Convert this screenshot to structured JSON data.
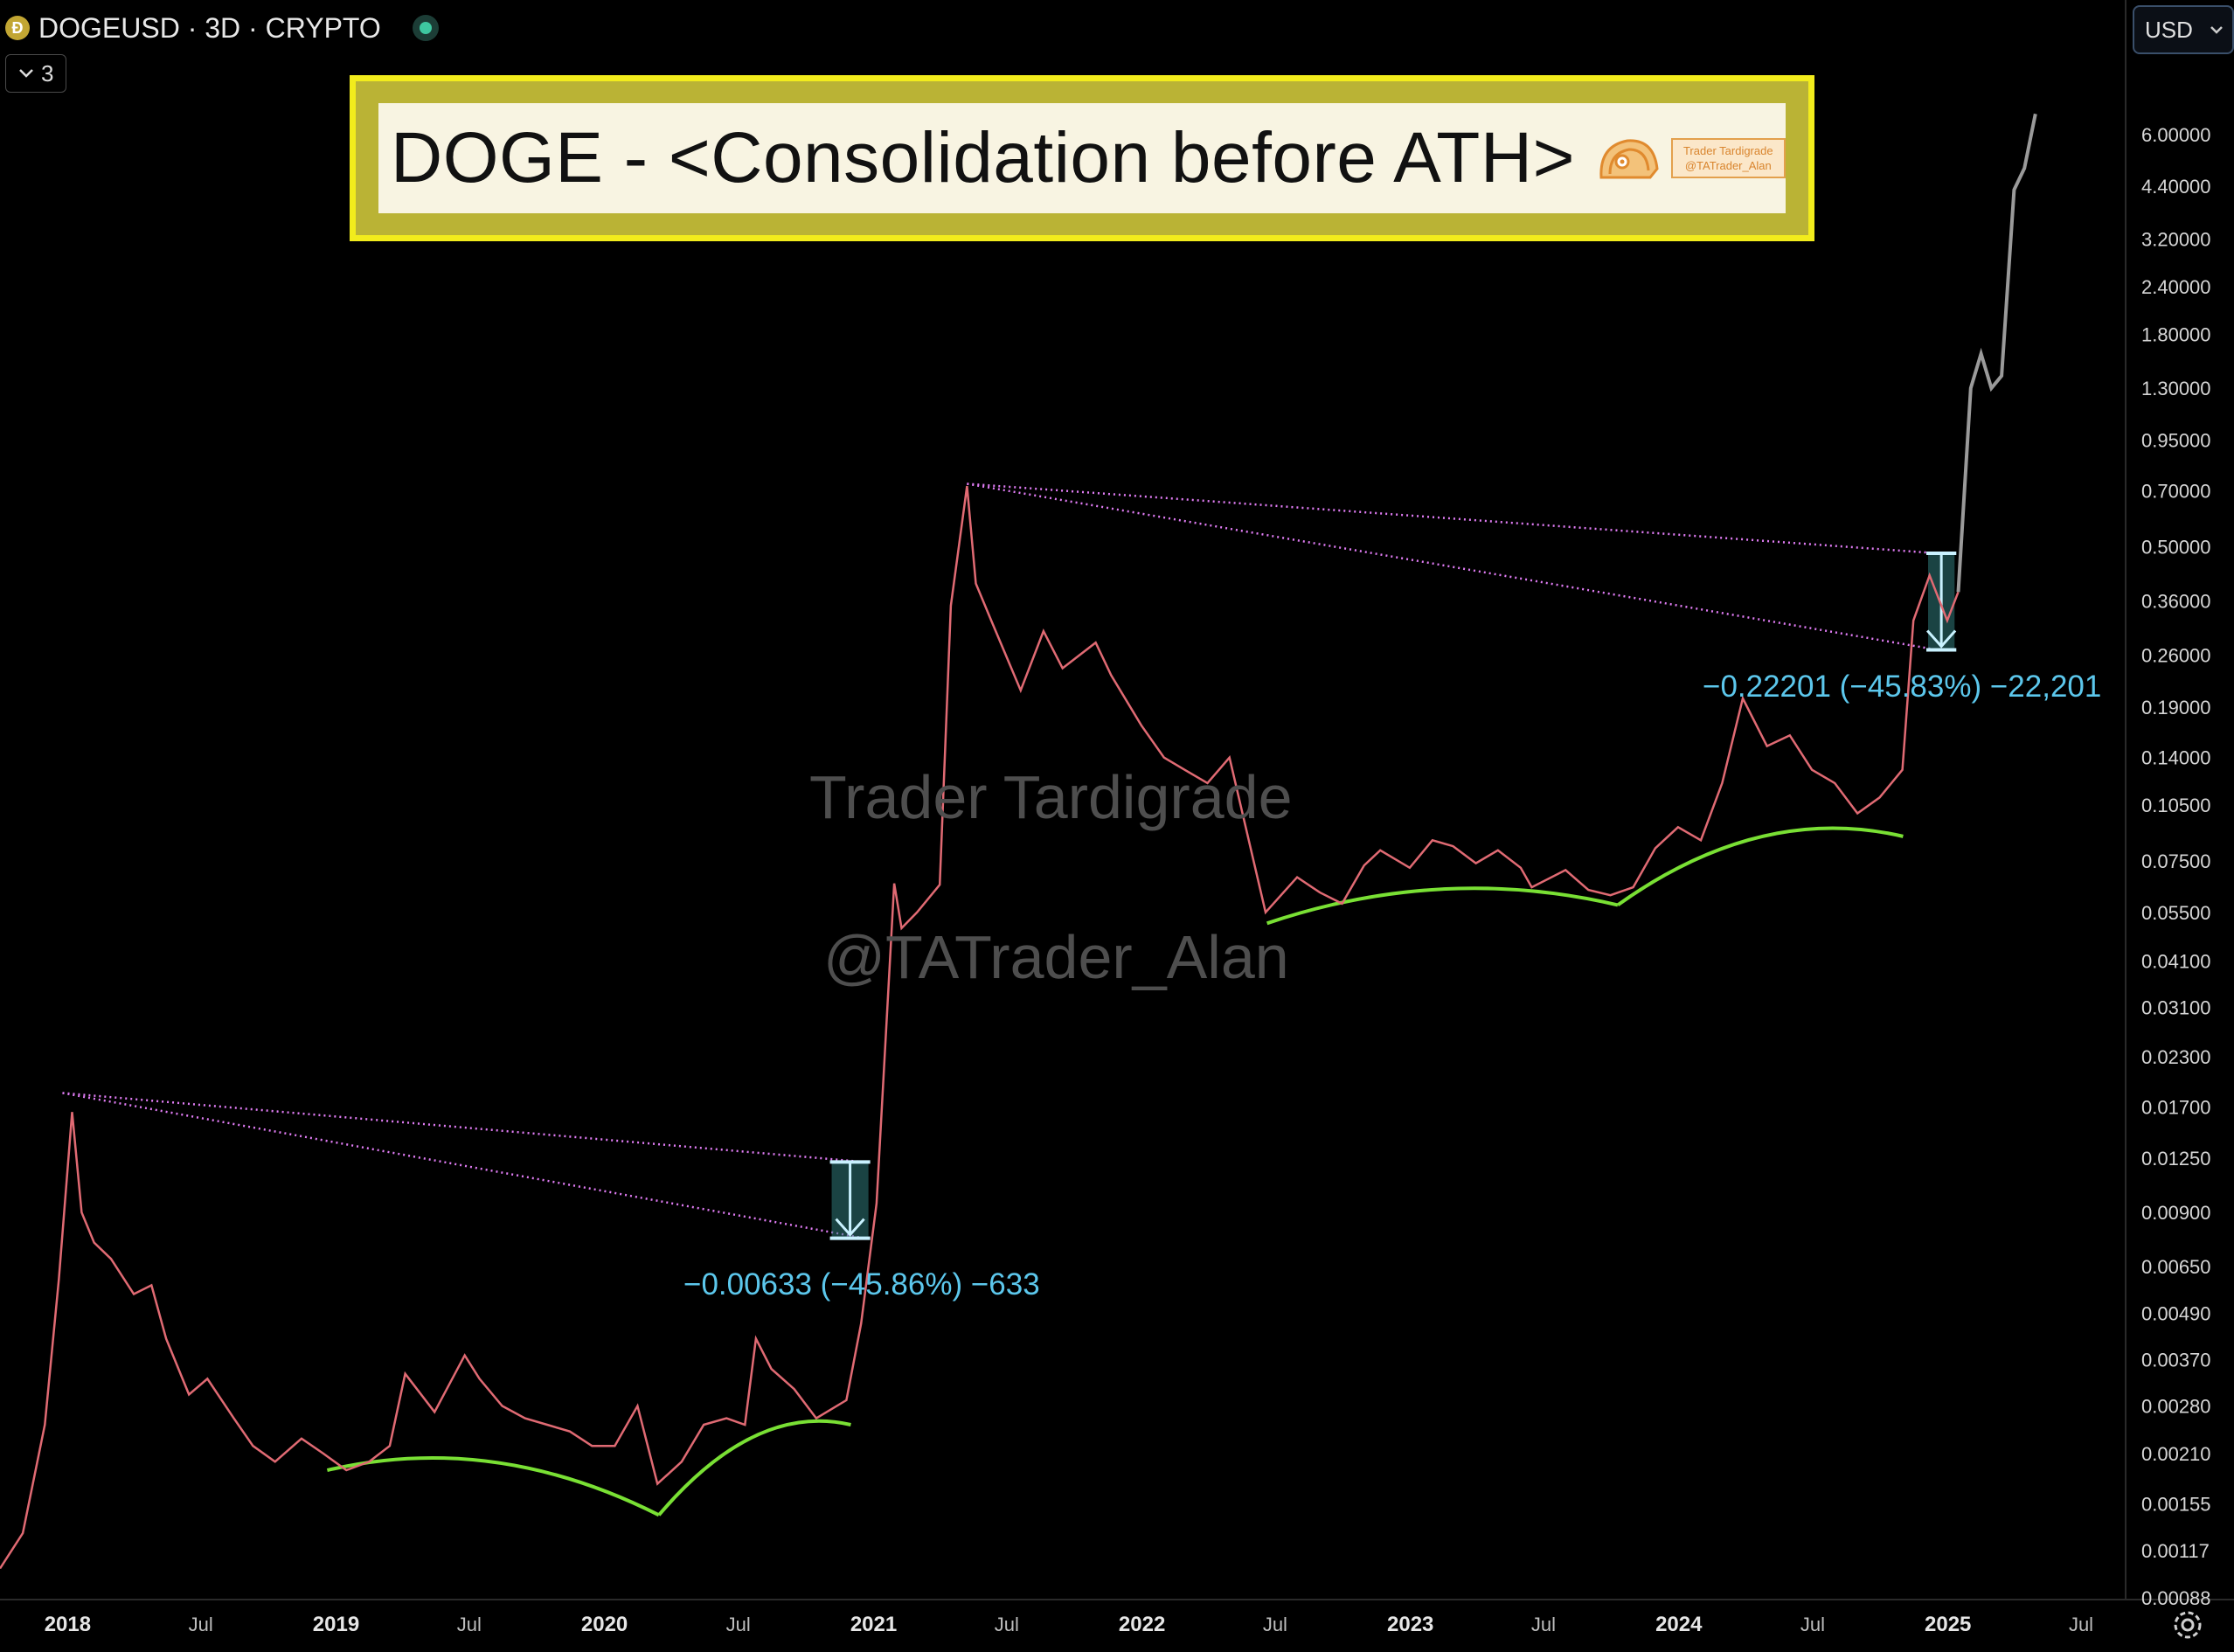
{
  "header": {
    "coin_icon": "dogecoin-coin-icon",
    "symbol": "DOGEUSD · 3D · CRYPTO",
    "status_icon": "market-open-dot-icon",
    "indicator_toggle": "3",
    "currency": "USD"
  },
  "title_banner": {
    "text": "DOGE - <Consolidation before ATH>",
    "logo_line1": "Trader Tardigrade",
    "logo_line2": "@TATrader_Alan",
    "colors": {
      "outer": "#f2ec1c",
      "inner": "#bab335",
      "panel": "#f8f4e2"
    }
  },
  "watermark": {
    "line1": "Trader Tardigrade",
    "line2": "@TATrader_Alan"
  },
  "measurements": [
    {
      "text": "−0.00633 (−45.86%) −633"
    },
    {
      "text": "−0.22201 (−45.83%) −22,201"
    }
  ],
  "chart_data": {
    "type": "line",
    "y_scale": "log",
    "ylim": [
      0.00088,
      8.5
    ],
    "x_axis_ticks": [
      "2018",
      "Jul",
      "2019",
      "Jul",
      "2020",
      "Jul",
      "2021",
      "Jul",
      "2022",
      "Jul",
      "2023",
      "Jul",
      "2024",
      "Jul",
      "2025",
      "Jul"
    ],
    "y_axis_ticks": [
      "6.00000",
      "4.40000",
      "3.20000",
      "2.40000",
      "1.80000",
      "1.30000",
      "0.95000",
      "0.70000",
      "0.50000",
      "0.36000",
      "0.26000",
      "0.19000",
      "0.14000",
      "0.10500",
      "0.07500",
      "0.05500",
      "0.04100",
      "0.03100",
      "0.02300",
      "0.01700",
      "0.01250",
      "0.00900",
      "0.00650",
      "0.00490",
      "0.00370",
      "0.00280",
      "0.00210",
      "0.00155",
      "0.00117",
      "0.00088"
    ],
    "series": [
      {
        "x": [
          "2017-10-01",
          "2017-11-01",
          "2017-12-01",
          "2017-12-20",
          "2018-01-07",
          "2018-01-20",
          "2018-02-06",
          "2018-03-01",
          "2018-04-01",
          "2018-04-25",
          "2018-05-15",
          "2018-06-15",
          "2018-07-10",
          "2018-08-15",
          "2018-09-10",
          "2018-10-10",
          "2018-11-15",
          "2018-12-15",
          "2019-01-15",
          "2019-02-15",
          "2019-03-15",
          "2019-04-05",
          "2019-05-15",
          "2019-06-25",
          "2019-07-15",
          "2019-08-15",
          "2019-09-15",
          "2019-10-15",
          "2019-11-15",
          "2019-12-15",
          "2020-01-15",
          "2020-02-15",
          "2020-03-13",
          "2020-04-15",
          "2020-05-15",
          "2020-06-15",
          "2020-07-10",
          "2020-07-25",
          "2020-08-15",
          "2020-09-15",
          "2020-10-15",
          "2020-11-25",
          "2020-12-15",
          "2021-01-05",
          "2021-01-29",
          "2021-02-08",
          "2021-03-01",
          "2021-04-01",
          "2021-04-16",
          "2021-05-08",
          "2021-05-20",
          "2021-06-10",
          "2021-07-20",
          "2021-08-20",
          "2021-09-15",
          "2021-10-30",
          "2021-11-20",
          "2021-12-31",
          "2022-01-31",
          "2022-02-28",
          "2022-03-31",
          "2022-04-30",
          "2022-06-18",
          "2022-07-31",
          "2022-08-31",
          "2022-09-30",
          "2022-10-30",
          "2022-11-21",
          "2022-12-31",
          "2023-01-31",
          "2023-02-28",
          "2023-03-31",
          "2023-04-30",
          "2023-05-31",
          "2023-06-15",
          "2023-07-31",
          "2023-08-31",
          "2023-09-30",
          "2023-10-31",
          "2023-11-30",
          "2023-12-31",
          "2024-01-31",
          "2024-02-29",
          "2024-03-28",
          "2024-04-30",
          "2024-05-31",
          "2024-06-30",
          "2024-07-31",
          "2024-08-31",
          "2024-09-30",
          "2024-10-31",
          "2024-11-15",
          "2024-12-07",
          "2024-12-31",
          "2025-01-15",
          "2025-02-01",
          "2025-02-15",
          "2025-03-01",
          "2025-03-15",
          "2025-04-01",
          "2025-04-15",
          "2025-04-30"
        ],
        "values": [
          0.00105,
          0.0013,
          0.0025,
          0.006,
          0.0165,
          0.009,
          0.0075,
          0.0068,
          0.0055,
          0.0058,
          0.0042,
          0.003,
          0.0033,
          0.0026,
          0.0022,
          0.002,
          0.0023,
          0.0021,
          0.0019,
          0.002,
          0.0022,
          0.0034,
          0.0027,
          0.0038,
          0.0033,
          0.0028,
          0.0026,
          0.0025,
          0.0024,
          0.0022,
          0.0022,
          0.0028,
          0.00175,
          0.002,
          0.0025,
          0.0026,
          0.0025,
          0.0042,
          0.0035,
          0.0031,
          0.0026,
          0.0029,
          0.0046,
          0.0095,
          0.0655,
          0.05,
          0.055,
          0.065,
          0.35,
          0.72,
          0.4,
          0.32,
          0.21,
          0.3,
          0.24,
          0.28,
          0.23,
          0.17,
          0.14,
          0.13,
          0.12,
          0.14,
          0.055,
          0.068,
          0.062,
          0.058,
          0.073,
          0.08,
          0.072,
          0.085,
          0.082,
          0.074,
          0.08,
          0.072,
          0.064,
          0.071,
          0.063,
          0.061,
          0.064,
          0.081,
          0.092,
          0.085,
          0.12,
          0.2,
          0.15,
          0.16,
          0.13,
          0.12,
          0.1,
          0.11,
          0.13,
          0.32,
          0.42,
          0.32,
          0.38,
          1.3,
          1.6,
          1.3,
          1.4,
          4.3,
          4.9,
          6.8
        ]
      }
    ],
    "annotations": {
      "trend_lines_2018": [
        {
          "from": [
            "2017-12-25",
            0.0185
          ],
          "to": [
            "2020-12-20",
            0.0122
          ]
        },
        {
          "from": [
            "2017-12-25",
            0.0185
          ],
          "to": [
            "2020-12-20",
            0.0077
          ]
        }
      ],
      "trend_lines_2021": [
        {
          "from": [
            "2021-05-08",
            0.73
          ],
          "to": [
            "2024-12-18",
            0.48
          ]
        },
        {
          "from": [
            "2021-05-08",
            0.73
          ],
          "to": [
            "2024-12-18",
            0.268
          ]
        }
      ],
      "consolidation_boxes": [
        {
          "x_from": "2020-11-05",
          "x_to": "2020-12-25",
          "y_top": 0.0122,
          "y_bottom": 0.0077
        },
        {
          "x_from": "2024-12-05",
          "x_to": "2025-01-10",
          "y_top": 0.48,
          "y_bottom": 0.268
        }
      ],
      "base_arcs": [
        {
          "from": [
            "2018-12-20",
            0.0019
          ],
          "to": [
            "2020-03-15",
            0.00145
          ]
        },
        {
          "from": [
            "2020-03-15",
            0.00145
          ],
          "to": [
            "2020-12-01",
            0.0025
          ]
        },
        {
          "from": [
            "2022-06-20",
            0.0515
          ],
          "to": [
            "2023-10-10",
            0.0575
          ]
        },
        {
          "from": [
            "2023-10-10",
            0.0575
          ],
          "to": [
            "2024-11-01",
            0.087
          ]
        }
      ]
    },
    "colors": {
      "candles": "#e06a73",
      "projection": "#9a9a9a",
      "trend_lines": "#e07cf4",
      "arcs": "#79e034",
      "boxes": "#2f7a7a"
    }
  }
}
